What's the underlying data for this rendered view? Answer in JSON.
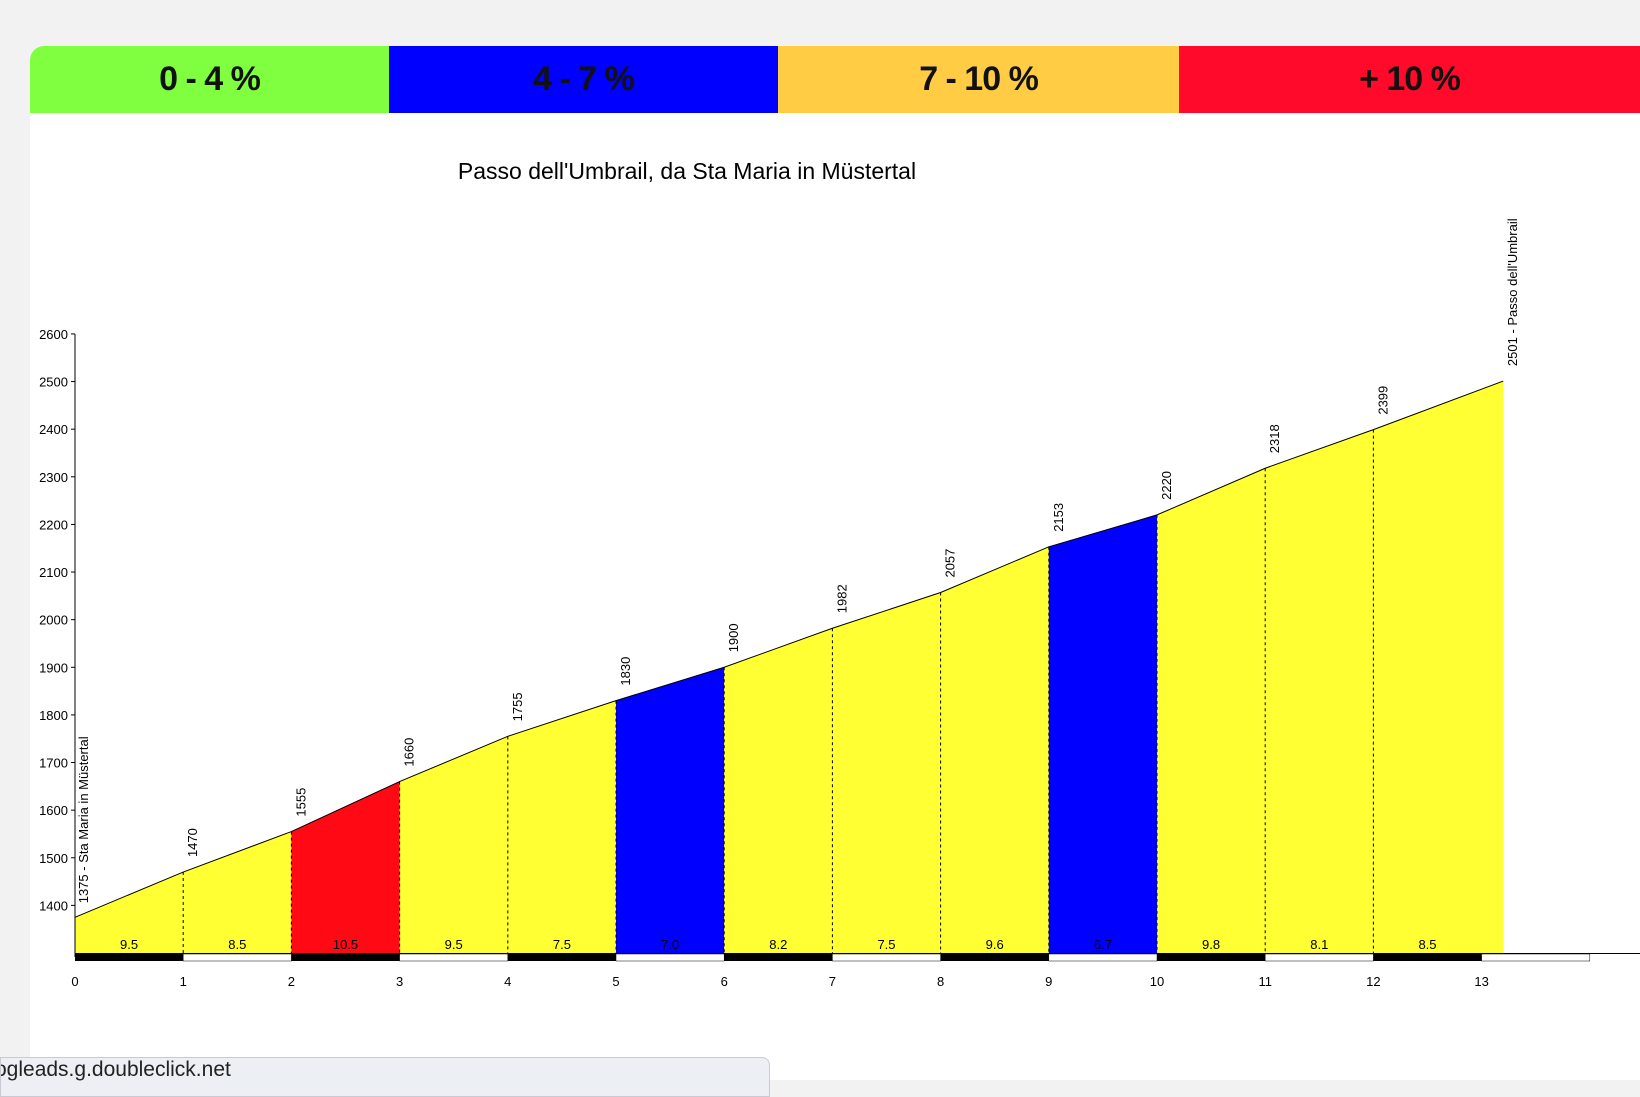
{
  "legend": [
    {
      "label": "0 - 4 %",
      "color": "#7fff3f"
    },
    {
      "label": "4 - 7 %",
      "color": "#0000ff"
    },
    {
      "label": "7 - 10 %",
      "color": "#ffcc44"
    },
    {
      "label": "+ 10 %",
      "color": "#ff0a2a"
    }
  ],
  "status_bar": {
    "text": "ogleads.g.doubleclick.net"
  },
  "chart_data": {
    "type": "area",
    "title": "Passo dell'Umbrail, da Sta Maria in Müstertal",
    "xlabel": "",
    "ylabel": "",
    "xlim": [
      0,
      14
    ],
    "ylim": [
      1300,
      2600
    ],
    "x_ticks": [
      0,
      1,
      2,
      3,
      4,
      5,
      6,
      7,
      8,
      9,
      10,
      11,
      12,
      13
    ],
    "y_ticks": [
      1400,
      1500,
      1600,
      1700,
      1800,
      1900,
      2000,
      2100,
      2200,
      2300,
      2400,
      2500,
      2600
    ],
    "x": [
      0,
      1,
      2,
      3,
      4,
      5,
      6,
      7,
      8,
      9,
      10,
      11,
      12,
      13.2
    ],
    "altitudes": [
      1375,
      1470,
      1555,
      1660,
      1755,
      1830,
      1900,
      1982,
      2057,
      2153,
      2220,
      2318,
      2399,
      2501
    ],
    "altitude_labels": [
      "1375 - Sta Maria in Müstertal",
      "1470",
      "1555",
      "1660",
      "1755",
      "1830",
      "1900",
      "1982",
      "2057",
      "2153",
      "2220",
      "2318",
      "2399",
      "2501 - Passo dell'Umbrail"
    ],
    "segment_gradients": [
      "9.5",
      "8.5",
      "10.5",
      "9.5",
      "7.5",
      "7.0",
      "8.2",
      "7.5",
      "9.6",
      "6.7",
      "9.8",
      "8.1",
      "8.5"
    ],
    "segment_colors": [
      "#ffff33",
      "#ffff33",
      "#ff0a14",
      "#ffff33",
      "#ffff33",
      "#0000ff",
      "#ffff33",
      "#ffff33",
      "#ffff33",
      "#0000ff",
      "#ffff33",
      "#ffff33",
      "#ffff33"
    ],
    "grid": false,
    "legend": "top"
  }
}
